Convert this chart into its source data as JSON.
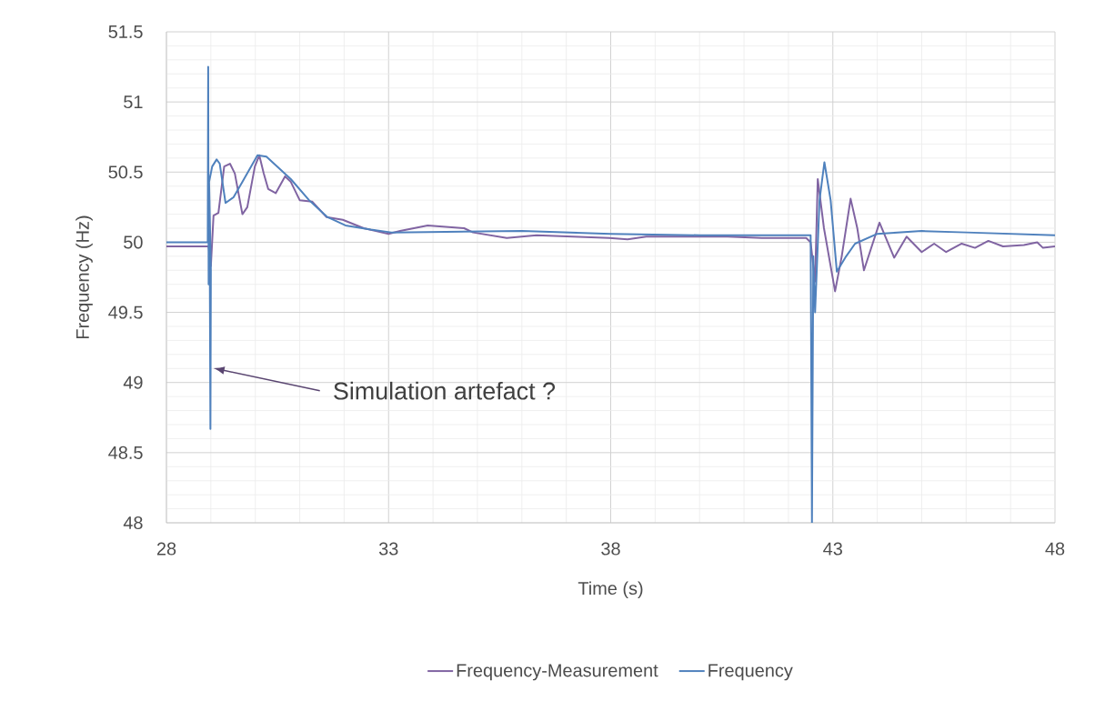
{
  "chart_data": {
    "type": "line",
    "xlabel": "Time (s)",
    "ylabel": "Frequency (Hz)",
    "xlim": [
      28,
      48
    ],
    "ylim": [
      48,
      51.5
    ],
    "xticks": [
      28,
      33,
      38,
      43,
      48
    ],
    "yticks": [
      48,
      48.5,
      49,
      49.5,
      50,
      50.5,
      51,
      51.5
    ],
    "grid": true,
    "legend": "bottom",
    "annotations": [
      "Simulation artefact ?"
    ],
    "series": [
      {
        "name": "Frequency-Measurement",
        "color": "#8064a2",
        "x": [
          28,
          28.95,
          29.0,
          29.06,
          29.17,
          29.3,
          29.43,
          29.54,
          29.71,
          29.82,
          29.99,
          30.09,
          30.19,
          30.29,
          30.46,
          30.67,
          30.8,
          31.0,
          31.28,
          31.6,
          31.97,
          32.44,
          33.0,
          33.26,
          33.88,
          34.7,
          34.9,
          35.66,
          36.33,
          37.97,
          38.38,
          38.8,
          40.16,
          40.63,
          41.4,
          42.4,
          42.5,
          42.6,
          42.66,
          42.8,
          43.05,
          43.2,
          43.4,
          43.55,
          43.7,
          44.05,
          44.38,
          44.66,
          45.0,
          45.28,
          45.55,
          45.9,
          46.2,
          46.5,
          46.83,
          47.3,
          47.6,
          47.73,
          48
        ],
        "values": [
          49.97,
          49.97,
          49.83,
          50.19,
          50.21,
          50.54,
          50.56,
          50.49,
          50.2,
          50.25,
          50.54,
          50.62,
          50.49,
          50.38,
          50.35,
          50.47,
          50.43,
          50.3,
          50.29,
          50.18,
          50.16,
          50.1,
          50.06,
          50.08,
          50.12,
          50.1,
          50.07,
          50.03,
          50.05,
          50.03,
          50.02,
          50.04,
          50.04,
          50.04,
          50.03,
          50.03,
          50.0,
          49.72,
          50.45,
          50.1,
          49.65,
          49.9,
          50.31,
          50.1,
          49.8,
          50.14,
          49.89,
          50.04,
          49.93,
          49.99,
          49.93,
          49.99,
          49.96,
          50.01,
          49.97,
          49.98,
          50.0,
          49.96,
          49.97
        ]
      },
      {
        "name": "Frequency",
        "color": "#4f81bd",
        "x": [
          28,
          28.86,
          28.93,
          28.94,
          28.95,
          28.97,
          28.99,
          29.0,
          28.96,
          29.03,
          29.13,
          29.2,
          29.33,
          29.51,
          29.71,
          30.05,
          30.25,
          30.8,
          31.21,
          31.62,
          32.03,
          32.6,
          33.06,
          36,
          38,
          40,
          42.5,
          42.53,
          42.56,
          42.6,
          42.7,
          42.81,
          42.95,
          43.09,
          43.3,
          43.5,
          44.0,
          45,
          46,
          48
        ],
        "values": [
          50,
          50,
          50,
          51.25,
          49.7,
          50.3,
          48.67,
          49.8,
          50.43,
          50.54,
          50.59,
          50.56,
          50.28,
          50.32,
          50.43,
          50.62,
          50.61,
          50.45,
          50.3,
          50.18,
          50.12,
          50.09,
          50.07,
          50.08,
          50.06,
          50.05,
          50.05,
          48.0,
          49.9,
          49.5,
          50.3,
          50.57,
          50.3,
          49.79,
          49.9,
          49.99,
          50.06,
          50.08,
          50.07,
          50.05
        ]
      }
    ]
  }
}
